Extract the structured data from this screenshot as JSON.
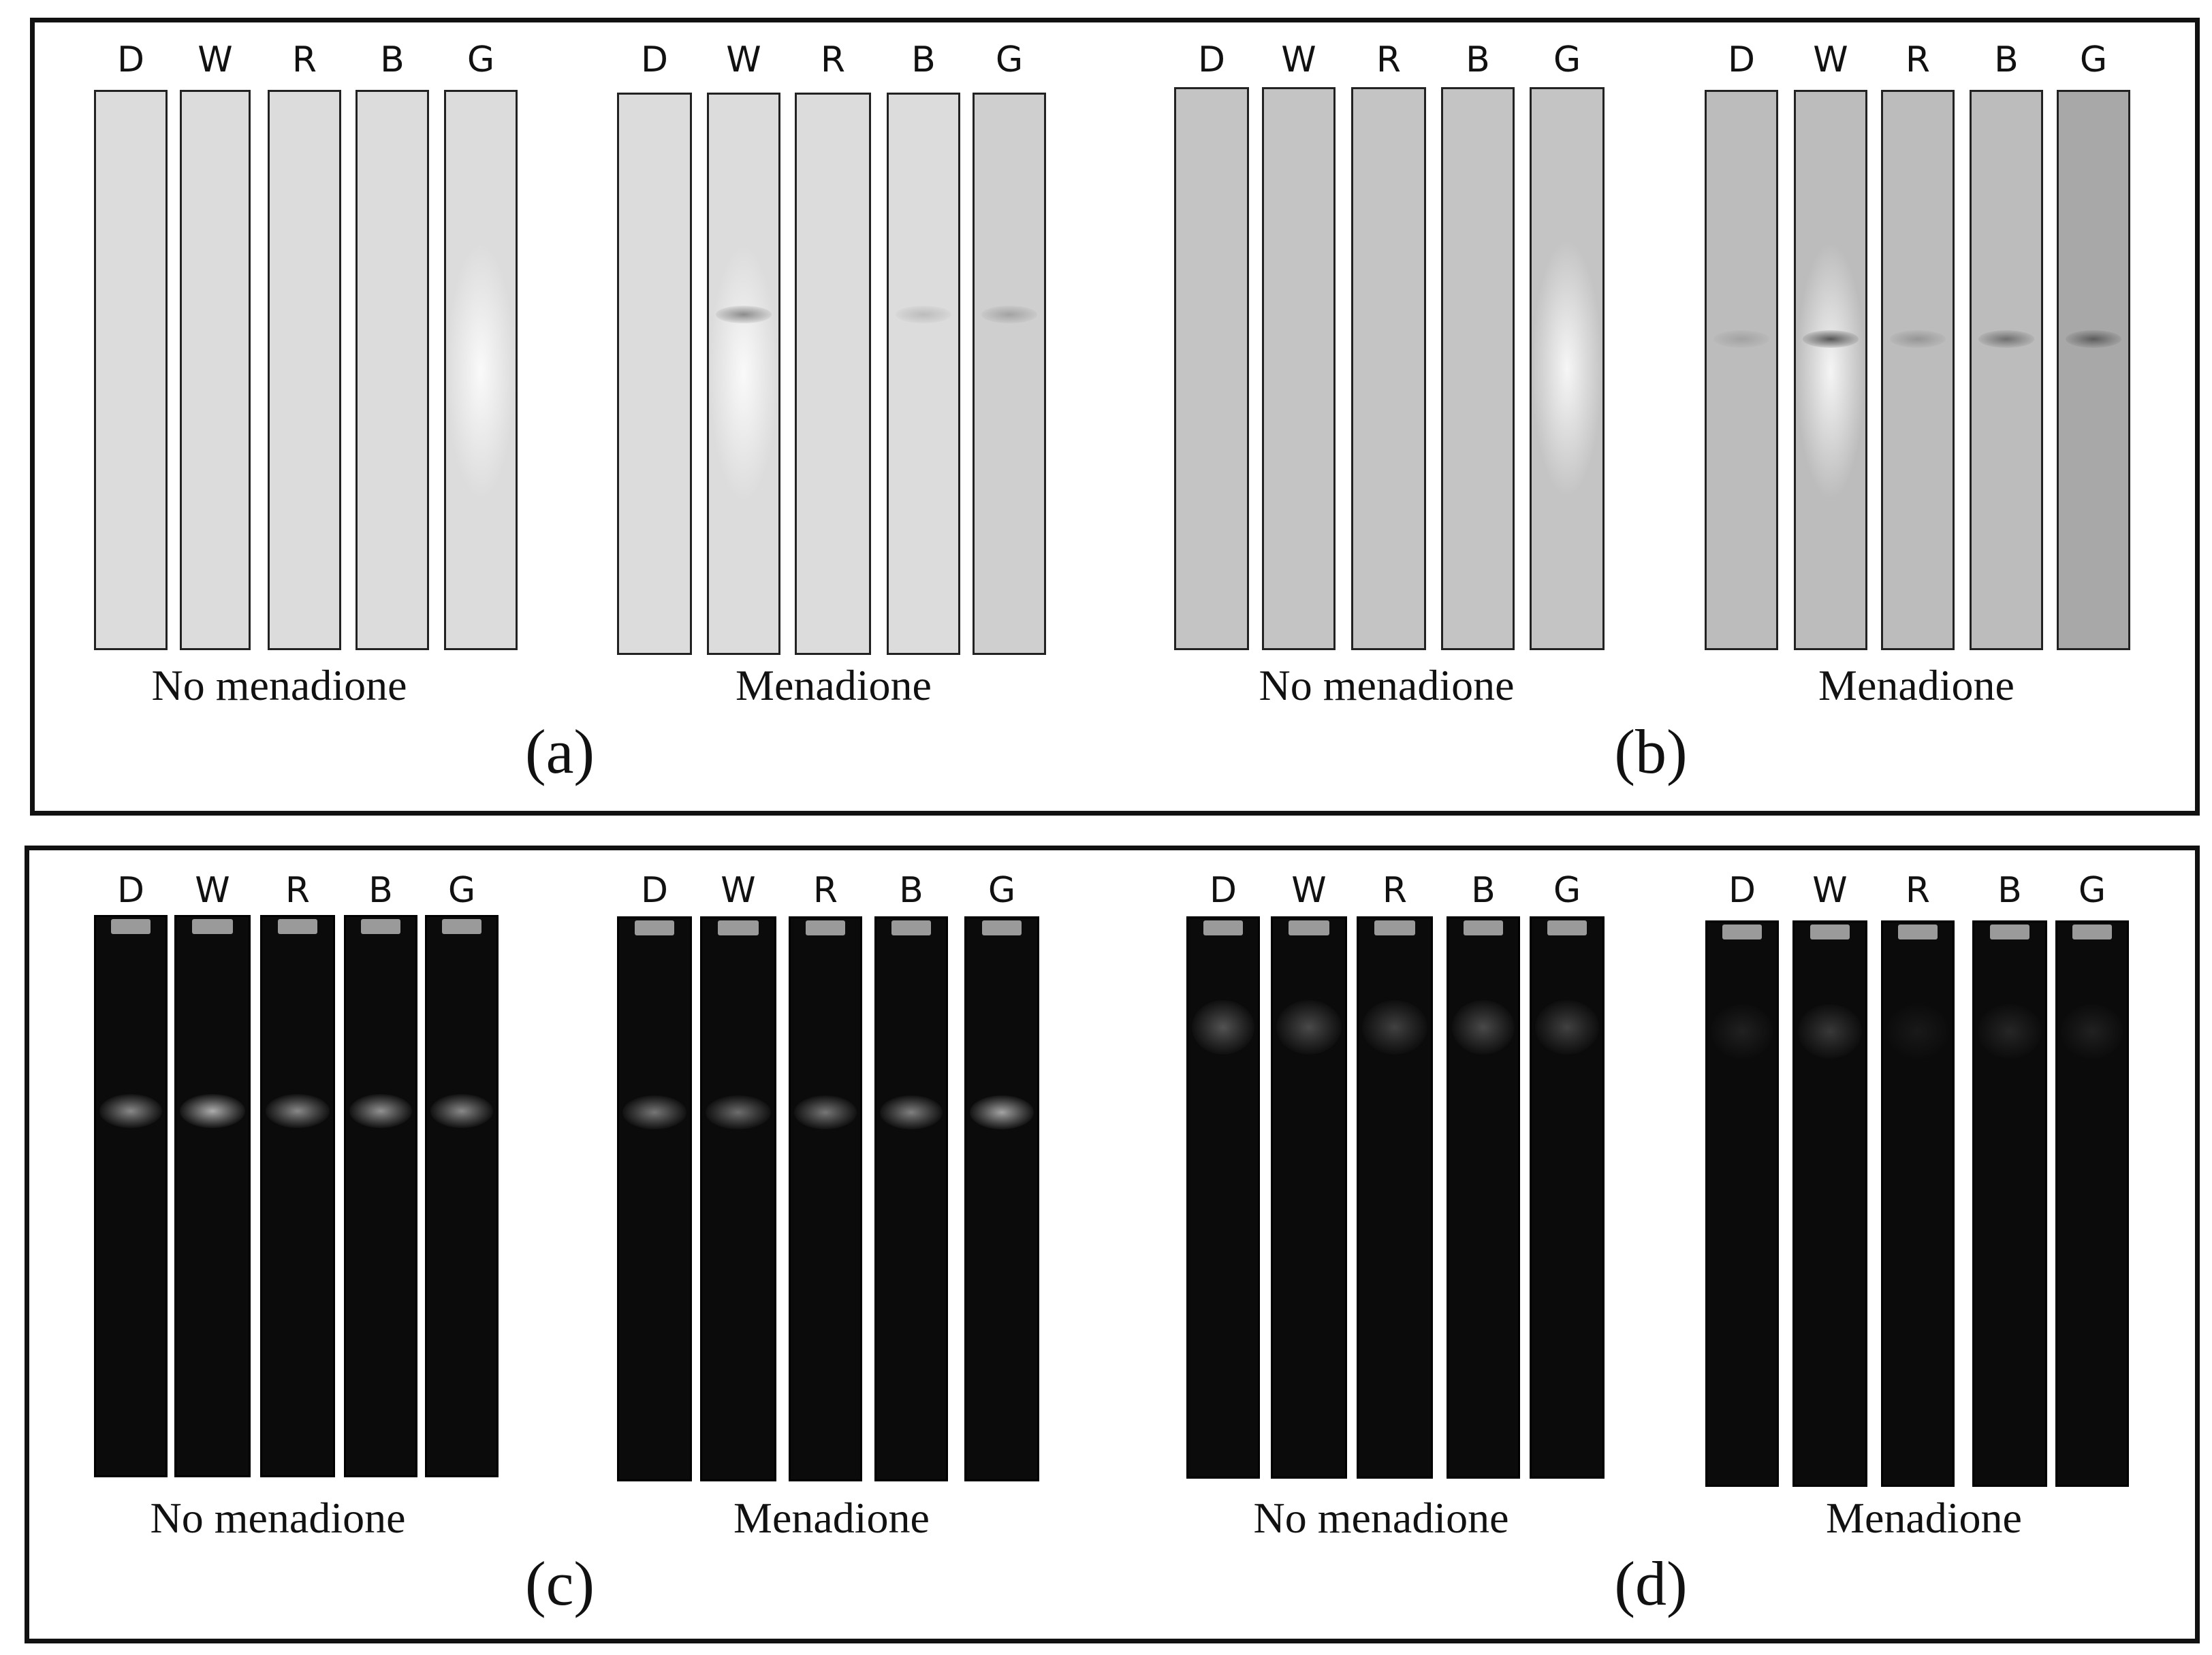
{
  "lane_labels": [
    "D",
    "W",
    "R",
    "B",
    "G"
  ],
  "panels": [
    {
      "id": "a",
      "letter": "(a)",
      "groups": [
        {
          "condition": "No menadione",
          "bands": [
            0,
            0,
            0,
            0,
            0
          ],
          "glow_lane": 4
        },
        {
          "condition": "Menadione",
          "bands": [
            0,
            0.55,
            0,
            0.2,
            0.3
          ],
          "glow_lane": 1
        }
      ]
    },
    {
      "id": "b",
      "letter": "(b)",
      "groups": [
        {
          "condition": "No menadione",
          "bands": [
            0,
            0,
            0,
            0,
            0
          ],
          "glow_lane": 4
        },
        {
          "condition": "Menadione",
          "bands": [
            0.2,
            0.85,
            0.3,
            0.6,
            0.7
          ],
          "glow_lane": 1
        }
      ]
    },
    {
      "id": "c",
      "letter": "(c)",
      "groups": [
        {
          "condition": "No menadione",
          "bands": [
            0.7,
            0.9,
            0.7,
            0.75,
            0.7
          ]
        },
        {
          "condition": "Menadione",
          "bands": [
            0.6,
            0.55,
            0.6,
            0.65,
            0.85
          ]
        }
      ]
    },
    {
      "id": "d",
      "letter": "(d)",
      "groups": [
        {
          "condition": "No menadione",
          "bands": [
            0.4,
            0.35,
            0.3,
            0.35,
            0.3
          ]
        },
        {
          "condition": "Menadione",
          "bands": [
            0.12,
            0.25,
            0.08,
            0.15,
            0.12
          ]
        }
      ]
    }
  ],
  "colors": {
    "panel_a_gel": "#dcdcdc",
    "panel_b_gel": "#c4c4c4",
    "panel_b_gel_menadione": "#bcbcbc",
    "dark_gel": "#0b0b0b",
    "band_light_gel": "#7a7a7a",
    "band_dark_gel": "#b8b8b8"
  }
}
